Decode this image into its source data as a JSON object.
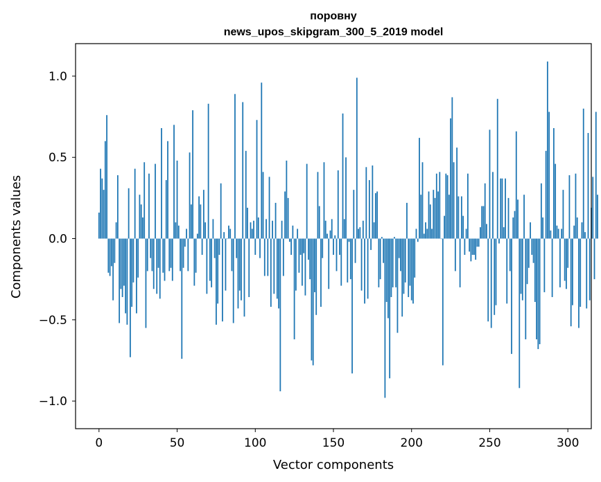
{
  "chart_data": {
    "type": "bar",
    "title": "поровну",
    "subtitle": "news_upos_skipgram_300_5_2019 model",
    "xlabel": "Vector components",
    "ylabel": "Components values",
    "xlim": [
      -15,
      315
    ],
    "ylim": [
      -1.17,
      1.2
    ],
    "x_ticks": [
      0,
      50,
      100,
      150,
      200,
      250,
      300
    ],
    "y_ticks": [
      -1.0,
      -0.5,
      0.0,
      0.5,
      1.0
    ],
    "y_tick_labels": [
      "−1.0",
      "−0.5",
      "0.0",
      "0.5",
      "1.0"
    ],
    "bar_color": "#1f77b4",
    "grid": false,
    "legend": "none",
    "values": [
      0.16,
      0.43,
      0.37,
      0.3,
      0.6,
      0.76,
      -0.21,
      -0.23,
      -0.17,
      -0.38,
      -0.15,
      0.1,
      0.39,
      -0.52,
      -0.31,
      -0.36,
      -0.29,
      -0.46,
      -0.53,
      0.31,
      -0.73,
      -0.42,
      -0.27,
      0.43,
      -0.46,
      -0.24,
      0.27,
      0.21,
      0.13,
      0.47,
      -0.55,
      -0.2,
      0.4,
      -0.12,
      -0.2,
      -0.31,
      0.46,
      -0.34,
      -0.18,
      -0.37,
      0.68,
      -0.21,
      -0.26,
      0.36,
      0.6,
      -0.2,
      -0.18,
      -0.26,
      0.7,
      0.1,
      0.48,
      0.08,
      -0.2,
      -0.74,
      -0.18,
      -0.05,
      0.06,
      -0.2,
      0.53,
      0.21,
      0.79,
      -0.29,
      -0.21,
      0.03,
      0.26,
      0.21,
      -0.1,
      0.3,
      0.1,
      -0.34,
      0.83,
      -0.26,
      -0.3,
      0.12,
      -0.12,
      -0.53,
      -0.4,
      -0.1,
      0.34,
      -0.51,
      0.04,
      -0.32,
      0.0,
      0.08,
      0.06,
      -0.2,
      -0.52,
      0.89,
      -0.12,
      -0.43,
      -0.32,
      -0.38,
      0.84,
      -0.48,
      0.54,
      0.19,
      -0.36,
      0.1,
      0.06,
      0.11,
      -0.1,
      0.73,
      0.13,
      -0.12,
      0.96,
      0.41,
      -0.23,
      0.12,
      -0.23,
      0.38,
      -0.42,
      0.11,
      -0.34,
      0.22,
      -0.37,
      -0.43,
      -0.94,
      0.11,
      -0.23,
      0.29,
      0.48,
      0.25,
      -0.02,
      -0.1,
      0.08,
      -0.62,
      -0.32,
      0.06,
      -0.21,
      -0.1,
      -0.29,
      -0.09,
      -0.35,
      0.46,
      -0.13,
      -0.25,
      -0.75,
      -0.78,
      -0.33,
      -0.47,
      0.41,
      0.2,
      -0.42,
      -0.12,
      0.47,
      0.11,
      0.03,
      -0.31,
      0.05,
      0.12,
      -0.1,
      0.02,
      -0.2,
      0.42,
      -0.1,
      -0.29,
      0.77,
      0.12,
      0.5,
      -0.27,
      -0.02,
      -0.25,
      -0.83,
      0.3,
      -0.15,
      0.99,
      0.06,
      0.07,
      -0.32,
      0.11,
      -0.4,
      0.44,
      -0.37,
      0.36,
      -0.07,
      0.45,
      0.1,
      0.28,
      0.29,
      -0.3,
      -0.25,
      0.01,
      -0.15,
      -0.98,
      -0.39,
      -0.49,
      -0.86,
      -0.36,
      -0.3,
      0.01,
      -0.3,
      -0.58,
      -0.12,
      -0.2,
      -0.48,
      -0.34,
      -0.27,
      0.22,
      -0.36,
      -0.29,
      -0.38,
      -0.4,
      -0.24,
      0.06,
      -0.02,
      0.62,
      0.27,
      0.47,
      0.03,
      0.1,
      0.06,
      0.29,
      0.21,
      0.06,
      0.3,
      0.25,
      0.4,
      0.29,
      0.41,
      0.0,
      -0.78,
      0.14,
      0.4,
      0.39,
      0.27,
      0.74,
      0.87,
      0.47,
      -0.2,
      0.56,
      0.26,
      -0.3,
      0.26,
      0.14,
      -0.1,
      0.06,
      0.4,
      -0.08,
      -0.14,
      -0.1,
      -0.1,
      -0.13,
      -0.05,
      -0.05,
      0.07,
      0.2,
      0.2,
      0.34,
      0.09,
      -0.51,
      0.67,
      -0.55,
      0.41,
      -0.47,
      -0.41,
      0.86,
      -0.03,
      0.37,
      0.37,
      0.07,
      0.37,
      -0.4,
      0.25,
      -0.2,
      -0.71,
      0.13,
      0.17,
      0.66,
      0.24,
      -0.92,
      -0.34,
      -0.38,
      0.27,
      -0.62,
      -0.28,
      -0.18,
      0.1,
      -0.1,
      -0.15,
      -0.39,
      -0.62,
      -0.68,
      -0.65,
      0.34,
      0.13,
      -0.33,
      0.54,
      1.09,
      0.78,
      0.05,
      -0.36,
      0.68,
      0.46,
      0.08,
      0.06,
      -0.3,
      0.06,
      0.3,
      -0.26,
      -0.31,
      -0.18,
      0.39,
      -0.54,
      -0.41,
      0.08,
      0.4,
      0.13,
      -0.55,
      -0.42,
      0.1,
      0.8,
      0.04,
      -0.43,
      0.65,
      -0.38,
      0.19,
      0.38,
      -0.25,
      0.78,
      0.27
    ]
  }
}
